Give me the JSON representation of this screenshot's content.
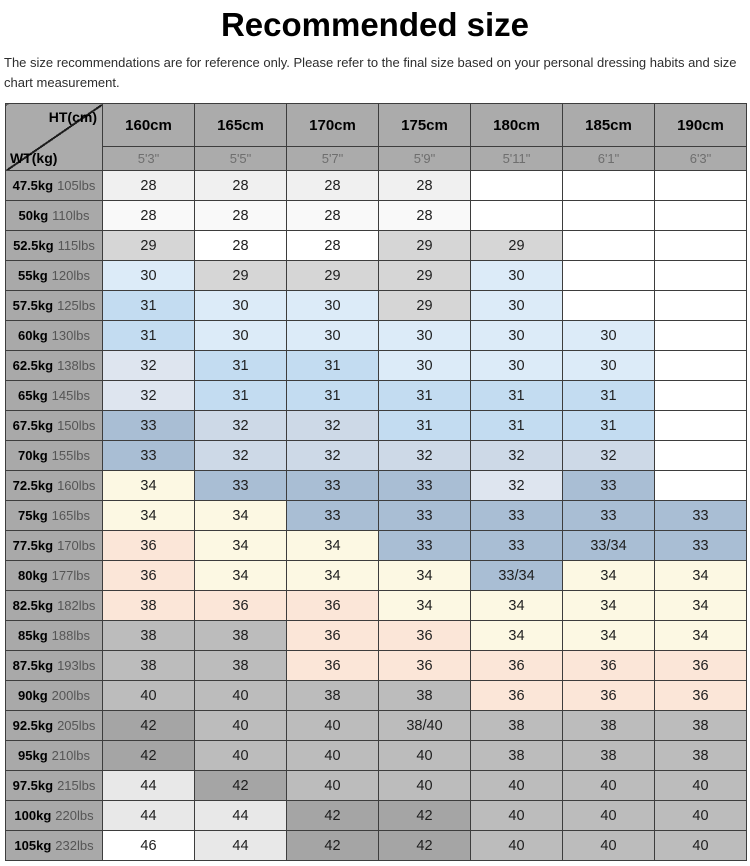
{
  "page": {
    "title": "Recommended size",
    "disclaimer": "The size recommendations are for reference only. Please refer to the final size based on your personal dressing habits and size chart measurement."
  },
  "chart_data": {
    "type": "table",
    "corner": {
      "top_right": "HT(cm)",
      "bottom_left": "WT(kg)"
    },
    "columns_cm": [
      "160cm",
      "165cm",
      "170cm",
      "175cm",
      "180cm",
      "185cm",
      "190cm"
    ],
    "columns_ft": [
      "5'3\"",
      "5'5\"",
      "5'7\"",
      "5'9\"",
      "5'11\"",
      "6'1\"",
      "6'3\""
    ],
    "cell_colors": {
      "w": "#ffffff",
      "p1": "#f0f0f0",
      "p2": "#f9f9f9",
      "g29": "#d6d6d6",
      "b30": "#dcebf8",
      "b31": "#c3dcf1",
      "b32l": "#dee5ef",
      "b32": "#cdd9e7",
      "b33": "#a9bed4",
      "cr": "#fcf8e3",
      "pk": "#fbe6d8",
      "g38": "#bcbcbc",
      "g42": "#a5a5a5",
      "g44": "#e8e8e8"
    },
    "rows": [
      {
        "kg": "47.5kg",
        "lbs": "105lbs",
        "cells": [
          [
            "28",
            "p1"
          ],
          [
            "28",
            "p1"
          ],
          [
            "28",
            "p1"
          ],
          [
            "28",
            "p1"
          ],
          [
            "",
            "w"
          ],
          [
            "",
            "w"
          ],
          [
            "",
            "w"
          ]
        ]
      },
      {
        "kg": "50kg",
        "lbs": "110lbs",
        "cells": [
          [
            "28",
            "p2"
          ],
          [
            "28",
            "p2"
          ],
          [
            "28",
            "p2"
          ],
          [
            "28",
            "p2"
          ],
          [
            "",
            "w"
          ],
          [
            "",
            "w"
          ],
          [
            "",
            "w"
          ]
        ]
      },
      {
        "kg": "52.5kg",
        "lbs": "115lbs",
        "cells": [
          [
            "29",
            "g29"
          ],
          [
            "28",
            "w"
          ],
          [
            "28",
            "w"
          ],
          [
            "29",
            "g29"
          ],
          [
            "29",
            "g29"
          ],
          [
            "",
            "w"
          ],
          [
            "",
            "w"
          ]
        ]
      },
      {
        "kg": "55kg",
        "lbs": "120lbs",
        "cells": [
          [
            "30",
            "b30"
          ],
          [
            "29",
            "g29"
          ],
          [
            "29",
            "g29"
          ],
          [
            "29",
            "g29"
          ],
          [
            "30",
            "b30"
          ],
          [
            "",
            "w"
          ],
          [
            "",
            "w"
          ]
        ]
      },
      {
        "kg": "57.5kg",
        "lbs": "125lbs",
        "cells": [
          [
            "31",
            "b31"
          ],
          [
            "30",
            "b30"
          ],
          [
            "30",
            "b30"
          ],
          [
            "29",
            "g29"
          ],
          [
            "30",
            "b30"
          ],
          [
            "",
            "w"
          ],
          [
            "",
            "w"
          ]
        ]
      },
      {
        "kg": "60kg",
        "lbs": "130lbs",
        "cells": [
          [
            "31",
            "b31"
          ],
          [
            "30",
            "b30"
          ],
          [
            "30",
            "b30"
          ],
          [
            "30",
            "b30"
          ],
          [
            "30",
            "b30"
          ],
          [
            "30",
            "b30"
          ],
          [
            "",
            "w"
          ]
        ]
      },
      {
        "kg": "62.5kg",
        "lbs": "138lbs",
        "cells": [
          [
            "32",
            "b32l"
          ],
          [
            "31",
            "b31"
          ],
          [
            "31",
            "b31"
          ],
          [
            "30",
            "b30"
          ],
          [
            "30",
            "b30"
          ],
          [
            "30",
            "b30"
          ],
          [
            "",
            "w"
          ]
        ]
      },
      {
        "kg": "65kg",
        "lbs": "145lbs",
        "cells": [
          [
            "32",
            "b32l"
          ],
          [
            "31",
            "b31"
          ],
          [
            "31",
            "b31"
          ],
          [
            "31",
            "b31"
          ],
          [
            "31",
            "b31"
          ],
          [
            "31",
            "b31"
          ],
          [
            "",
            "w"
          ]
        ]
      },
      {
        "kg": "67.5kg",
        "lbs": "150lbs",
        "cells": [
          [
            "33",
            "b33"
          ],
          [
            "32",
            "b32"
          ],
          [
            "32",
            "b32"
          ],
          [
            "31",
            "b31"
          ],
          [
            "31",
            "b31"
          ],
          [
            "31",
            "b31"
          ],
          [
            "",
            "w"
          ]
        ]
      },
      {
        "kg": "70kg",
        "lbs": "155lbs",
        "cells": [
          [
            "33",
            "b33"
          ],
          [
            "32",
            "b32"
          ],
          [
            "32",
            "b32"
          ],
          [
            "32",
            "b32"
          ],
          [
            "32",
            "b32"
          ],
          [
            "32",
            "b32"
          ],
          [
            "",
            "w"
          ]
        ]
      },
      {
        "kg": "72.5kg",
        "lbs": "160lbs",
        "cells": [
          [
            "34",
            "cr"
          ],
          [
            "33",
            "b33"
          ],
          [
            "33",
            "b33"
          ],
          [
            "33",
            "b33"
          ],
          [
            "32",
            "b32l"
          ],
          [
            "33",
            "b33"
          ],
          [
            "",
            "w"
          ]
        ]
      },
      {
        "kg": "75kg",
        "lbs": "165lbs",
        "cells": [
          [
            "34",
            "cr"
          ],
          [
            "34",
            "cr"
          ],
          [
            "33",
            "b33"
          ],
          [
            "33",
            "b33"
          ],
          [
            "33",
            "b33"
          ],
          [
            "33",
            "b33"
          ],
          [
            "33",
            "b33"
          ]
        ]
      },
      {
        "kg": "77.5kg",
        "lbs": "170lbs",
        "cells": [
          [
            "36",
            "pk"
          ],
          [
            "34",
            "cr"
          ],
          [
            "34",
            "cr"
          ],
          [
            "33",
            "b33"
          ],
          [
            "33",
            "b33"
          ],
          [
            "33/34",
            "b33"
          ],
          [
            "33",
            "b33"
          ]
        ]
      },
      {
        "kg": "80kg",
        "lbs": "177lbs",
        "cells": [
          [
            "36",
            "pk"
          ],
          [
            "34",
            "cr"
          ],
          [
            "34",
            "cr"
          ],
          [
            "34",
            "cr"
          ],
          [
            "33/34",
            "b33"
          ],
          [
            "34",
            "cr"
          ],
          [
            "34",
            "cr"
          ]
        ]
      },
      {
        "kg": "82.5kg",
        "lbs": "182lbs",
        "cells": [
          [
            "38",
            "pk"
          ],
          [
            "36",
            "pk"
          ],
          [
            "36",
            "pk"
          ],
          [
            "34",
            "cr"
          ],
          [
            "34",
            "cr"
          ],
          [
            "34",
            "cr"
          ],
          [
            "34",
            "cr"
          ]
        ]
      },
      {
        "kg": "85kg",
        "lbs": "188lbs",
        "cells": [
          [
            "38",
            "g38"
          ],
          [
            "38",
            "g38"
          ],
          [
            "36",
            "pk"
          ],
          [
            "36",
            "pk"
          ],
          [
            "34",
            "cr"
          ],
          [
            "34",
            "cr"
          ],
          [
            "34",
            "cr"
          ]
        ]
      },
      {
        "kg": "87.5kg",
        "lbs": "193lbs",
        "cells": [
          [
            "38",
            "g38"
          ],
          [
            "38",
            "g38"
          ],
          [
            "36",
            "pk"
          ],
          [
            "36",
            "pk"
          ],
          [
            "36",
            "pk"
          ],
          [
            "36",
            "pk"
          ],
          [
            "36",
            "pk"
          ]
        ]
      },
      {
        "kg": "90kg",
        "lbs": "200lbs",
        "cells": [
          [
            "40",
            "g38"
          ],
          [
            "40",
            "g38"
          ],
          [
            "38",
            "g38"
          ],
          [
            "38",
            "g38"
          ],
          [
            "36",
            "pk"
          ],
          [
            "36",
            "pk"
          ],
          [
            "36",
            "pk"
          ]
        ]
      },
      {
        "kg": "92.5kg",
        "lbs": "205lbs",
        "cells": [
          [
            "42",
            "g42"
          ],
          [
            "40",
            "g38"
          ],
          [
            "40",
            "g38"
          ],
          [
            "38/40",
            "g38"
          ],
          [
            "38",
            "g38"
          ],
          [
            "38",
            "g38"
          ],
          [
            "38",
            "g38"
          ]
        ]
      },
      {
        "kg": "95kg",
        "lbs": "210lbs",
        "cells": [
          [
            "42",
            "g42"
          ],
          [
            "40",
            "g38"
          ],
          [
            "40",
            "g38"
          ],
          [
            "40",
            "g38"
          ],
          [
            "38",
            "g38"
          ],
          [
            "38",
            "g38"
          ],
          [
            "38",
            "g38"
          ]
        ]
      },
      {
        "kg": "97.5kg",
        "lbs": "215lbs",
        "cells": [
          [
            "44",
            "g44"
          ],
          [
            "42",
            "g42"
          ],
          [
            "40",
            "g38"
          ],
          [
            "40",
            "g38"
          ],
          [
            "40",
            "g38"
          ],
          [
            "40",
            "g38"
          ],
          [
            "40",
            "g38"
          ]
        ]
      },
      {
        "kg": "100kg",
        "lbs": "220lbs",
        "cells": [
          [
            "44",
            "g44"
          ],
          [
            "44",
            "g44"
          ],
          [
            "42",
            "g42"
          ],
          [
            "42",
            "g42"
          ],
          [
            "40",
            "g38"
          ],
          [
            "40",
            "g38"
          ],
          [
            "40",
            "g38"
          ]
        ]
      },
      {
        "kg": "105kg",
        "lbs": "232lbs",
        "cells": [
          [
            "46",
            "w"
          ],
          [
            "44",
            "g44"
          ],
          [
            "42",
            "g42"
          ],
          [
            "42",
            "g42"
          ],
          [
            "40",
            "g38"
          ],
          [
            "40",
            "g38"
          ],
          [
            "40",
            "g38"
          ]
        ]
      }
    ]
  }
}
